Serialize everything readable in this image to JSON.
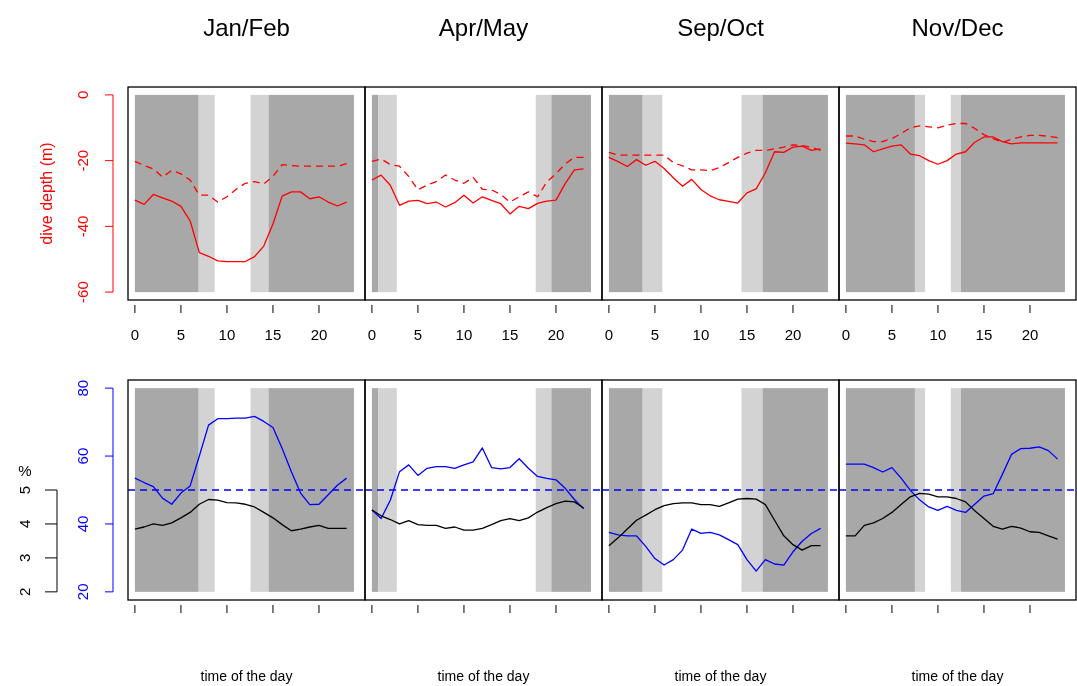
{
  "chart_data": [
    {
      "type": "line",
      "title": "Jan/Feb",
      "ylabel": "dive depth (m)",
      "x": [
        0,
        1,
        2,
        3,
        4,
        5,
        6,
        7,
        8,
        9,
        10,
        11,
        12,
        13,
        14,
        15,
        16,
        17,
        18,
        19,
        20,
        21,
        22,
        23
      ],
      "xlim": [
        -0.75,
        25
      ],
      "xticks": [
        0,
        5,
        10,
        15,
        20
      ],
      "ylim": [
        -62.4,
        2.4
      ],
      "yticks": [
        0,
        -20,
        -40,
        -60
      ],
      "series": [
        {
          "color": "#ff0000",
          "line_style": "solid",
          "values": [
            -32,
            -33.3,
            -30.3,
            -31.3,
            -32.3,
            -33.9,
            -38.3,
            -48,
            -49.1,
            -50.5,
            -50.7,
            -50.7,
            -50.7,
            -49.2,
            -46,
            -39.3,
            -30.8,
            -29.5,
            -29.5,
            -31.6,
            -31,
            -32.6,
            -33.8,
            -32.6
          ]
        },
        {
          "color": "#ff0000",
          "line_style": "dashed",
          "values": [
            -20.2,
            -21.5,
            -22.5,
            -25,
            -23,
            -24,
            -25.9,
            -30.5,
            -30.5,
            -32.6,
            -31,
            -28.7,
            -26.9,
            -26.4,
            -27.1,
            -24.8,
            -21.2,
            -21.5,
            -21.7,
            -21.7,
            -21.7,
            -21.7,
            -21.7,
            -20.9
          ]
        }
      ],
      "bands": [
        {
          "axis": "x",
          "from": 0,
          "to": 6.93,
          "color": "#a8a8a8"
        },
        {
          "axis": "x",
          "from": 6.93,
          "to": 8.67,
          "color": "#d3d3d3"
        },
        {
          "axis": "x",
          "from": 12.56,
          "to": 14.52,
          "color": "#d3d3d3"
        },
        {
          "axis": "x",
          "from": 14.52,
          "to": 23.8,
          "color": "#a8a8a8"
        }
      ]
    },
    {
      "type": "line",
      "title": "Apr/May",
      "x": [
        0,
        1,
        2,
        3,
        4,
        5,
        6,
        7,
        8,
        9,
        10,
        11,
        12,
        13,
        14,
        15,
        16,
        17,
        18,
        19,
        20,
        21,
        22,
        23
      ],
      "xlim": [
        -0.75,
        25
      ],
      "xticks": [
        0,
        5,
        10,
        15,
        20
      ],
      "ylim": [
        -62.4,
        2.4
      ],
      "yticks": [
        0,
        -20,
        -40,
        -60
      ],
      "tick_labels": "x",
      "series": [
        {
          "color": "#ff0000",
          "line_style": "solid",
          "values": [
            -25.9,
            -24.4,
            -27.5,
            -33.6,
            -32.3,
            -32.1,
            -33.1,
            -32.6,
            -34.1,
            -32.8,
            -30.5,
            -32.9,
            -31,
            -32.1,
            -33.1,
            -36.2,
            -33.9,
            -34.6,
            -33,
            -32.3,
            -32,
            -27,
            -22.8,
            -22.5
          ]
        },
        {
          "color": "#ff0000",
          "line_style": "dashed",
          "values": [
            -20.2,
            -19.5,
            -21.2,
            -21.7,
            -24.8,
            -28.9,
            -27.4,
            -26.4,
            -24.4,
            -25.9,
            -26.9,
            -25.1,
            -28.7,
            -28.9,
            -30.3,
            -32.6,
            -31,
            -29.5,
            -31,
            -26.5,
            -24,
            -21,
            -19,
            -19
          ]
        }
      ],
      "bands": [
        {
          "axis": "x",
          "from": 0,
          "to": 0.7,
          "color": "#a8a8a8"
        },
        {
          "axis": "x",
          "from": 0.7,
          "to": 2.7,
          "color": "#d3d3d3"
        },
        {
          "axis": "x",
          "from": 17.8,
          "to": 19.5,
          "color": "#d3d3d3"
        },
        {
          "axis": "x",
          "from": 19.5,
          "to": 23.8,
          "color": "#a8a8a8"
        }
      ]
    },
    {
      "type": "line",
      "title": "Sep/Oct",
      "x": [
        0,
        1,
        2,
        3,
        4,
        5,
        6,
        7,
        8,
        9,
        10,
        11,
        12,
        13,
        14,
        15,
        16,
        17,
        18,
        19,
        20,
        21,
        22,
        23
      ],
      "xlim": [
        -0.75,
        25
      ],
      "xticks": [
        0,
        5,
        10,
        15,
        20
      ],
      "ylim": [
        -62.4,
        2.4
      ],
      "yticks": [
        0,
        -20,
        -40,
        -60
      ],
      "tick_labels": "x",
      "series": [
        {
          "color": "#ff0000",
          "line_style": "solid",
          "values": [
            -19,
            -20.3,
            -21.8,
            -19.7,
            -21.4,
            -20.2,
            -22.4,
            -25.2,
            -27.8,
            -25.7,
            -28.8,
            -30.7,
            -31.9,
            -32.4,
            -32.9,
            -29.8,
            -28.6,
            -23.7,
            -17.3,
            -17.5,
            -15.9,
            -15.6,
            -16.9,
            -16.4
          ]
        },
        {
          "color": "#ff0000",
          "line_style": "dashed",
          "values": [
            -17.5,
            -18.3,
            -18.3,
            -18.3,
            -18.3,
            -18.3,
            -18.3,
            -20.6,
            -21.6,
            -22.8,
            -22.8,
            -23.1,
            -22.1,
            -20.6,
            -19,
            -17.7,
            -16.9,
            -16.9,
            -16.4,
            -15.9,
            -15.2,
            -15.4,
            -15.9,
            -16.9
          ]
        }
      ],
      "bands": [
        {
          "axis": "x",
          "from": 0,
          "to": 3.67,
          "color": "#a8a8a8"
        },
        {
          "axis": "x",
          "from": 3.67,
          "to": 5.8,
          "color": "#d3d3d3"
        },
        {
          "axis": "x",
          "from": 14.4,
          "to": 16.7,
          "color": "#d3d3d3"
        },
        {
          "axis": "x",
          "from": 16.7,
          "to": 23.8,
          "color": "#a8a8a8"
        }
      ]
    },
    {
      "type": "line",
      "title": "Nov/Dec",
      "x": [
        0,
        1,
        2,
        3,
        4,
        5,
        6,
        7,
        8,
        9,
        10,
        11,
        12,
        13,
        14,
        15,
        16,
        17,
        18,
        19,
        20,
        21,
        22,
        23
      ],
      "xlim": [
        -0.75,
        25
      ],
      "xticks": [
        0,
        5,
        10,
        15,
        20
      ],
      "ylim": [
        -62.4,
        2.4
      ],
      "yticks": [
        0,
        -20,
        -40,
        -60
      ],
      "tick_labels": "x",
      "series": [
        {
          "color": "#ff0000",
          "line_style": "solid",
          "values": [
            -14.7,
            -14.9,
            -15.2,
            -17.3,
            -16.4,
            -15.6,
            -15.2,
            -18,
            -18.5,
            -20,
            -21.1,
            -20,
            -18,
            -17.3,
            -14.4,
            -12.8,
            -12.8,
            -14.2,
            -14.9,
            -14.6,
            -14.6,
            -14.6,
            -14.6,
            -14.6
          ]
        },
        {
          "color": "#ff0000",
          "line_style": "dashed",
          "values": [
            -12.5,
            -12.5,
            -13.5,
            -14.2,
            -14.2,
            -13.3,
            -11.8,
            -10,
            -9.4,
            -9.7,
            -10,
            -9.2,
            -8.7,
            -8.7,
            -10.2,
            -12.1,
            -13.3,
            -14.4,
            -13.5,
            -12.8,
            -12.3,
            -12.3,
            -12.6,
            -13
          ]
        }
      ],
      "bands": [
        {
          "axis": "x",
          "from": 0,
          "to": 7.5,
          "color": "#a8a8a8"
        },
        {
          "axis": "x",
          "from": 7.5,
          "to": 8.6,
          "color": "#d3d3d3"
        },
        {
          "axis": "x",
          "from": 11.4,
          "to": 12.5,
          "color": "#d3d3d3"
        },
        {
          "axis": "x",
          "from": 12.5,
          "to": 23.8,
          "color": "#a8a8a8"
        }
      ]
    },
    {
      "type": "line",
      "xlabel": "time of the day",
      "y2label": "%",
      "x": [
        0,
        1,
        2,
        3,
        4,
        5,
        6,
        7,
        8,
        9,
        10,
        11,
        12,
        13,
        14,
        15,
        16,
        17,
        18,
        19,
        20,
        21,
        22,
        23
      ],
      "xlim": [
        -0.75,
        25
      ],
      "xticks": [
        0,
        5,
        10,
        15,
        20
      ],
      "ylim": [
        17.6,
        82.4
      ],
      "yticks": [
        20,
        40,
        60,
        80
      ],
      "y2lim": [
        1.76,
        8.24
      ],
      "y2ticks": [
        2,
        3,
        4,
        5
      ],
      "tick_labels": "y",
      "series": [
        {
          "color": "#0000ff",
          "values": [
            53.5,
            52.2,
            51,
            47.6,
            45.8,
            49.1,
            51.2,
            60,
            69.1,
            71,
            71,
            71.2,
            71.2,
            71.7,
            70.2,
            68.4,
            62.2,
            55.4,
            49.1,
            45.7,
            45.8,
            48.6,
            51.4,
            53.5
          ]
        },
        {
          "color": "#000000",
          "axis": "y2",
          "values": [
            3.85,
            3.91,
            4,
            3.96,
            4.03,
            4.18,
            4.34,
            4.58,
            4.72,
            4.7,
            4.63,
            4.62,
            4.58,
            4.5,
            4.34,
            4.18,
            3.98,
            3.8,
            3.85,
            3.91,
            3.96,
            3.87,
            3.87,
            3.87
          ]
        }
      ],
      "ref_lines": [
        {
          "axis": "y",
          "value": 50,
          "color": "#0000ff",
          "line_style": "dashed"
        }
      ],
      "bands": [
        {
          "axis": "x",
          "from": 0,
          "to": 6.93,
          "color": "#a8a8a8"
        },
        {
          "axis": "x",
          "from": 6.93,
          "to": 8.67,
          "color": "#d3d3d3"
        },
        {
          "axis": "x",
          "from": 12.56,
          "to": 14.52,
          "color": "#d3d3d3"
        },
        {
          "axis": "x",
          "from": 14.52,
          "to": 23.8,
          "color": "#a8a8a8"
        }
      ]
    },
    {
      "type": "line",
      "xlabel": "time of the day",
      "x": [
        0,
        1,
        2,
        3,
        4,
        5,
        6,
        7,
        8,
        9,
        10,
        11,
        12,
        13,
        14,
        15,
        16,
        17,
        18,
        19,
        20,
        21,
        22,
        23
      ],
      "xlim": [
        -0.75,
        25
      ],
      "xticks": [
        0,
        5,
        10,
        15,
        20
      ],
      "ylim": [
        17.6,
        82.4
      ],
      "yticks": [
        20,
        40,
        60,
        80
      ],
      "y2lim": [
        1.76,
        8.24
      ],
      "tick_labels": false,
      "series": [
        {
          "color": "#0000ff",
          "values": [
            44.1,
            41.6,
            47,
            55.4,
            57.4,
            54.3,
            56.4,
            56.9,
            56.9,
            56.4,
            57.4,
            58.3,
            62.4,
            56.6,
            56.2,
            56.6,
            59.2,
            56.4,
            54,
            53.4,
            53,
            50.5,
            47.2,
            44.5
          ]
        },
        {
          "color": "#000000",
          "axis": "y2",
          "values": [
            4.41,
            4.24,
            4.13,
            4,
            4.1,
            3.98,
            3.96,
            3.96,
            3.87,
            3.91,
            3.82,
            3.82,
            3.87,
            3.98,
            4.1,
            4.16,
            4.1,
            4.18,
            4.35,
            4.48,
            4.6,
            4.67,
            4.65,
            4.47
          ]
        }
      ],
      "ref_lines": [
        {
          "axis": "y",
          "value": 50,
          "color": "#0000ff",
          "line_style": "dashed"
        }
      ],
      "bands": [
        {
          "axis": "x",
          "from": 0,
          "to": 0.7,
          "color": "#a8a8a8"
        },
        {
          "axis": "x",
          "from": 0.7,
          "to": 2.7,
          "color": "#d3d3d3"
        },
        {
          "axis": "x",
          "from": 17.8,
          "to": 19.5,
          "color": "#d3d3d3"
        },
        {
          "axis": "x",
          "from": 19.5,
          "to": 23.8,
          "color": "#a8a8a8"
        }
      ]
    },
    {
      "type": "line",
      "xlabel": "time of the day",
      "x": [
        0,
        1,
        2,
        3,
        4,
        5,
        6,
        7,
        8,
        9,
        10,
        11,
        12,
        13,
        14,
        15,
        16,
        17,
        18,
        19,
        20,
        21,
        22,
        23
      ],
      "xlim": [
        -0.75,
        25
      ],
      "xticks": [
        0,
        5,
        10,
        15,
        20
      ],
      "ylim": [
        17.6,
        82.4
      ],
      "yticks": [
        20,
        40,
        60,
        80
      ],
      "y2lim": [
        1.76,
        8.24
      ],
      "tick_labels": false,
      "series": [
        {
          "color": "#0000ff",
          "values": [
            37.5,
            36.8,
            36.5,
            36.5,
            33.4,
            29.8,
            27.9,
            29.5,
            32.3,
            38.5,
            37.2,
            37.5,
            36.8,
            35.4,
            33.9,
            29.5,
            26.1,
            29.5,
            28.2,
            27.9,
            31.8,
            34.9,
            37.2,
            38.7
          ]
        },
        {
          "color": "#000000",
          "axis": "y2",
          "values": [
            3.36,
            3.59,
            3.85,
            4.11,
            4.26,
            4.42,
            4.54,
            4.6,
            4.62,
            4.62,
            4.57,
            4.57,
            4.52,
            4.62,
            4.73,
            4.75,
            4.73,
            4.57,
            4.11,
            3.65,
            3.39,
            3.23,
            3.36,
            3.36
          ]
        }
      ],
      "ref_lines": [
        {
          "axis": "y",
          "value": 50,
          "color": "#0000ff",
          "line_style": "dashed"
        }
      ],
      "bands": [
        {
          "axis": "x",
          "from": 0,
          "to": 3.67,
          "color": "#a8a8a8"
        },
        {
          "axis": "x",
          "from": 3.67,
          "to": 5.8,
          "color": "#d3d3d3"
        },
        {
          "axis": "x",
          "from": 14.4,
          "to": 16.7,
          "color": "#d3d3d3"
        },
        {
          "axis": "x",
          "from": 16.7,
          "to": 23.8,
          "color": "#a8a8a8"
        }
      ]
    },
    {
      "type": "line",
      "xlabel": "time of the day",
      "x": [
        0,
        1,
        2,
        3,
        4,
        5,
        6,
        7,
        8,
        9,
        10,
        11,
        12,
        13,
        14,
        15,
        16,
        17,
        18,
        19,
        20,
        21,
        22,
        23
      ],
      "xlim": [
        -0.75,
        25
      ],
      "xticks": [
        0,
        5,
        10,
        15,
        20
      ],
      "ylim": [
        17.6,
        82.4
      ],
      "yticks": [
        20,
        40,
        60,
        80
      ],
      "y2lim": [
        1.76,
        8.24
      ],
      "tick_labels": false,
      "series": [
        {
          "color": "#0000ff",
          "values": [
            57.6,
            57.6,
            57.6,
            56.6,
            55.3,
            56.6,
            53.5,
            49.9,
            47.1,
            45,
            44,
            45.2,
            44,
            43.4,
            45.8,
            48.2,
            48.9,
            54.6,
            60.5,
            62.2,
            62.3,
            62.7,
            61.6,
            59.1
          ]
        },
        {
          "color": "#000000",
          "axis": "y2",
          "values": [
            3.65,
            3.65,
            3.96,
            4.03,
            4.16,
            4.34,
            4.57,
            4.8,
            4.9,
            4.88,
            4.8,
            4.8,
            4.75,
            4.65,
            4.39,
            4.16,
            3.93,
            3.85,
            3.93,
            3.88,
            3.77,
            3.75,
            3.65,
            3.55
          ]
        }
      ],
      "ref_lines": [
        {
          "axis": "y",
          "value": 50,
          "color": "#0000ff",
          "line_style": "dashed"
        }
      ],
      "bands": [
        {
          "axis": "x",
          "from": 0,
          "to": 7.5,
          "color": "#a8a8a8"
        },
        {
          "axis": "x",
          "from": 7.5,
          "to": 8.6,
          "color": "#d3d3d3"
        },
        {
          "axis": "x",
          "from": 11.4,
          "to": 12.5,
          "color": "#d3d3d3"
        },
        {
          "axis": "x",
          "from": 12.5,
          "to": 23.8,
          "color": "#a8a8a8"
        }
      ]
    }
  ]
}
